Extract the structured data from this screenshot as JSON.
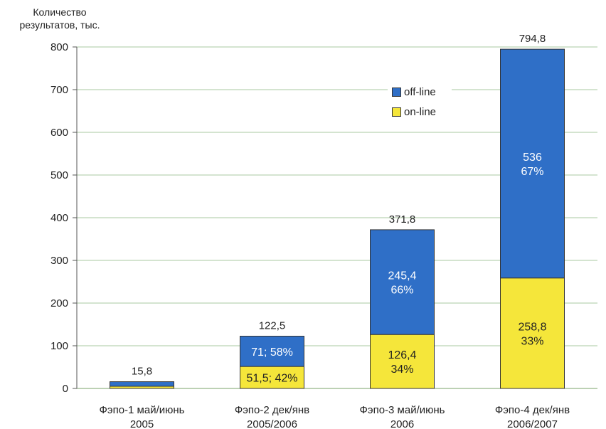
{
  "chart_data": {
    "type": "bar",
    "stacked": true,
    "ylabel": [
      "Количество",
      "результатов, тыс."
    ],
    "ylim": [
      0,
      800
    ],
    "yticks": [
      0,
      100,
      200,
      300,
      400,
      500,
      600,
      700,
      800
    ],
    "grid": true,
    "legend_position": "upper-center",
    "categories": [
      [
        "Фэпо-1 май/июнь",
        "2005"
      ],
      [
        "Фэпо-2 дек/янв",
        "2005/2006"
      ],
      [
        "Фэпо-3 май/июнь",
        "2006"
      ],
      [
        "Фэпо-4 дек/янв",
        "2006/2007"
      ]
    ],
    "totals": [
      15.8,
      122.5,
      371.8,
      794.8
    ],
    "total_labels": [
      "15,8",
      "122,5",
      "371,8",
      "794,8"
    ],
    "series": [
      {
        "name": "on-line",
        "color": "#f5e63a",
        "values": [
          5,
          51.5,
          126.4,
          258.8
        ],
        "labels": [
          [],
          [
            "51,5; 42%"
          ],
          [
            "126,4",
            "34%"
          ],
          [
            "258,8",
            "33%"
          ]
        ]
      },
      {
        "name": "off-line",
        "color": "#2f6fc7",
        "values": [
          10.8,
          71,
          245.4,
          536
        ],
        "labels": [
          [],
          [
            "71; 58%"
          ],
          [
            "245,4",
            "66%"
          ],
          [
            "536",
            "67%"
          ]
        ]
      }
    ],
    "legend": [
      "off-line",
      "on-line"
    ]
  }
}
